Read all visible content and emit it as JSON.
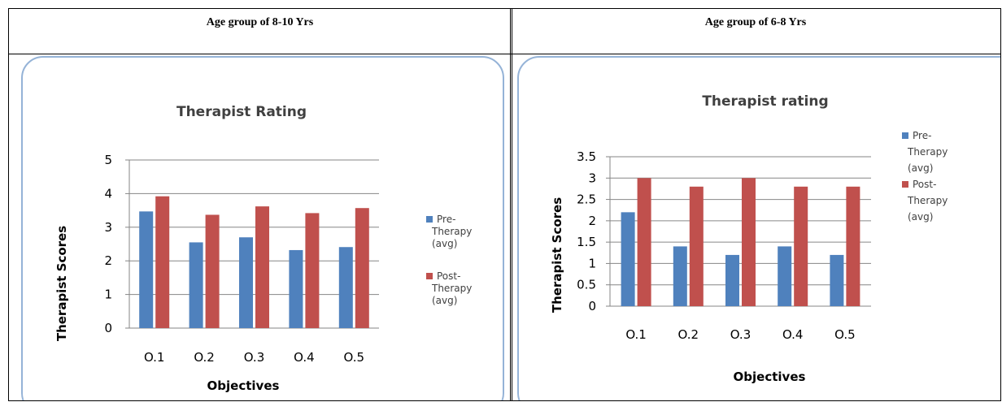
{
  "table": {
    "headers": [
      "Age group of 8-10 Yrs",
      "Age group of 6-8 Yrs"
    ]
  },
  "colors": {
    "pre": "#4f81bd",
    "post": "#c0504d",
    "frame": "#95b3d7"
  },
  "chart_data": [
    {
      "type": "bar",
      "title": "Therapist Rating",
      "xlabel": "Objectives",
      "ylabel": "Therapist  Scores",
      "categories": [
        "O.1",
        "O.2",
        "O.3",
        "O.4",
        "O.5"
      ],
      "ylim": [
        0,
        5
      ],
      "yticks": [
        "0",
        "1",
        "2",
        "3",
        "4",
        "5"
      ],
      "grid": true,
      "legend_position": "right",
      "series": [
        {
          "name": "Pre-Therapy (avg)",
          "legend_lines": [
            "Pre-",
            "Therapy",
            "(avg)"
          ],
          "values": [
            3.47,
            2.55,
            2.7,
            2.32,
            2.41
          ]
        },
        {
          "name": "Post-Therapy (avg)",
          "legend_lines": [
            "Post-",
            "Therapy",
            "(avg)"
          ],
          "values": [
            3.92,
            3.37,
            3.62,
            3.42,
            3.57
          ]
        }
      ]
    },
    {
      "type": "bar",
      "title": "Therapist rating",
      "xlabel": "Objectives",
      "ylabel": "Therapist Scores",
      "categories": [
        "O.1",
        "O.2",
        "O.3",
        "O.4",
        "O.5"
      ],
      "ylim": [
        0,
        3.5
      ],
      "yticks": [
        "0",
        "0.5",
        "1",
        "1.5",
        "2",
        "2.5",
        "3",
        "3.5"
      ],
      "grid": true,
      "legend_position": "right",
      "series": [
        {
          "name": "Pre-Therapy (avg)",
          "legend_lines": [
            "Pre-",
            "Therapy",
            "(avg)"
          ],
          "values": [
            2.2,
            1.4,
            1.2,
            1.4,
            1.2
          ]
        },
        {
          "name": "Post-Therapy (avg)",
          "legend_lines": [
            "Post-",
            "Therapy",
            "(avg)"
          ],
          "values": [
            3.0,
            2.8,
            3.0,
            2.8,
            2.8
          ]
        }
      ]
    }
  ]
}
